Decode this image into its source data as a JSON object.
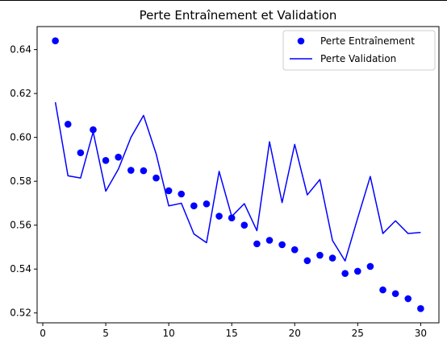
{
  "chart_data": {
    "type": "line",
    "title": "Perte Entraînement et Validation",
    "xlabel": "",
    "ylabel": "",
    "xlim": [
      -0.45,
      31.45
    ],
    "ylim": [
      0.5155,
      0.6505
    ],
    "xticks": [
      0,
      5,
      10,
      15,
      20,
      25,
      30
    ],
    "yticks": [
      0.52,
      0.54,
      0.56,
      0.58,
      0.6,
      0.62,
      0.64
    ],
    "grid": false,
    "legend_position": "top-right",
    "x": [
      1,
      2,
      3,
      4,
      5,
      6,
      7,
      8,
      9,
      10,
      11,
      12,
      13,
      14,
      15,
      16,
      17,
      18,
      19,
      20,
      21,
      22,
      23,
      24,
      25,
      26,
      27,
      28,
      29,
      30
    ],
    "series": [
      {
        "name": "Perte Entraînement",
        "style": "markers",
        "color": "#0000ff",
        "values": [
          0.644,
          0.606,
          0.593,
          0.6035,
          0.5895,
          0.591,
          0.585,
          0.5848,
          0.5815,
          0.5757,
          0.5742,
          0.5688,
          0.5697,
          0.5641,
          0.5633,
          0.56,
          0.5515,
          0.5531,
          0.5511,
          0.5488,
          0.5438,
          0.5463,
          0.545,
          0.538,
          0.539,
          0.5412,
          0.5305,
          0.5288,
          0.5265,
          0.522
        ]
      },
      {
        "name": "Perte Validation",
        "style": "line",
        "color": "#0000ff",
        "values": [
          0.616,
          0.5825,
          0.5815,
          0.6025,
          0.5755,
          0.5855,
          0.6,
          0.61,
          0.5925,
          0.5688,
          0.57,
          0.556,
          0.552,
          0.5845,
          0.564,
          0.5698,
          0.5575,
          0.598,
          0.5703,
          0.5968,
          0.5738,
          0.5808,
          0.553,
          0.5437,
          0.5632,
          0.5822,
          0.5562,
          0.562,
          0.5562,
          0.5567
        ]
      }
    ]
  }
}
